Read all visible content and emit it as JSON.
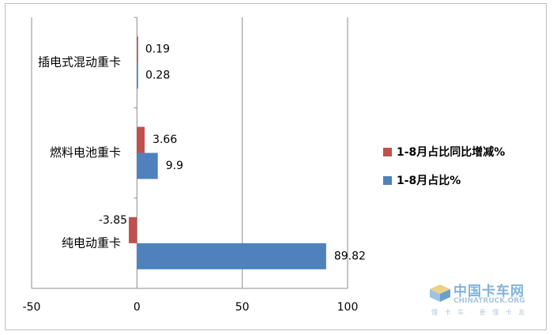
{
  "chart_data": {
    "type": "bar",
    "orientation": "horizontal",
    "categories": [
      "插电式混动重卡",
      "燃料电池重卡",
      "纯电动重卡"
    ],
    "series": [
      {
        "name": "1-8月占比同比增减%",
        "color": "#c0504d",
        "values": [
          0.19,
          3.66,
          -3.85
        ],
        "labels": [
          "0.19",
          "3.66",
          "-3.85"
        ]
      },
      {
        "name": "1-8月占比%",
        "color": "#4f81bd",
        "values": [
          0.28,
          9.9,
          89.82
        ],
        "labels": [
          "0.28",
          "9.9",
          "89.82"
        ]
      }
    ],
    "xlim": [
      -50,
      100
    ],
    "xticks": [
      -50,
      0,
      50,
      100
    ],
    "xtick_labels": [
      "-50",
      "0",
      "50",
      "100"
    ],
    "grid": true,
    "legend_position": "right",
    "legend_order": [
      0,
      1
    ]
  },
  "watermark": {
    "logo_text": "中国卡车网",
    "logo_sub": "CHINATRUCK.ORG",
    "tagline": "懂 卡 车 · 更 懂 卡 友",
    "icon": "truck-icon"
  }
}
